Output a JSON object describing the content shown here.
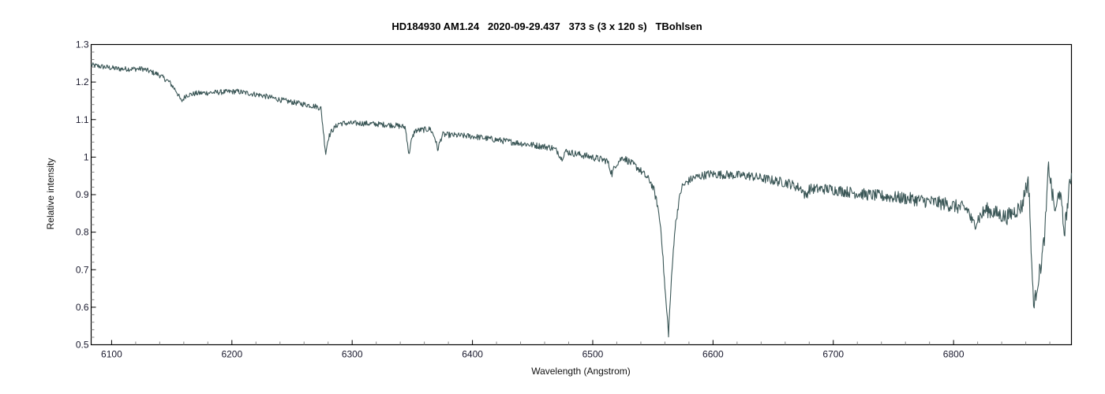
{
  "chart_data": {
    "type": "line",
    "title": "HD184930 AM1.24   2020-09-29.437   373 s (3 x 120 s)   TBohlsen",
    "xlabel": "Wavelength (Angstrom)",
    "ylabel": "Relative intensity",
    "xlim": [
      6083,
      6898
    ],
    "ylim": [
      0.5,
      1.3
    ],
    "x_ticks": [
      6100,
      6200,
      6300,
      6400,
      6500,
      6600,
      6700,
      6800
    ],
    "x_tick_labels": [
      "6100",
      "6200",
      "6300",
      "6400",
      "6500",
      "6600",
      "6700",
      "6800"
    ],
    "x_minor_step": 20,
    "y_ticks": [
      0.5,
      0.6,
      0.7,
      0.8,
      0.9,
      1.0,
      1.1,
      1.2,
      1.3
    ],
    "y_tick_labels": [
      "0.5",
      "0.6",
      "0.7",
      "0.8",
      "0.9",
      "1",
      "1.1",
      "1.2",
      "1.3"
    ],
    "y_minor_step": 0.02,
    "grid": false,
    "line_color": "#3a5656",
    "series": [
      {
        "name": "spectrum",
        "x": [
          6083,
          6106,
          6126,
          6139,
          6148,
          6154,
          6158,
          6162,
          6171,
          6204,
          6224,
          6244,
          6270,
          6274,
          6276,
          6278,
          6280,
          6283,
          6289,
          6309,
          6335,
          6344,
          6346,
          6347,
          6349,
          6352,
          6365,
          6369,
          6371,
          6373,
          6375,
          6401,
          6433,
          6466,
          6471,
          6474,
          6477,
          6499,
          6512,
          6516,
          6519,
          6525,
          6538,
          6548,
          6551,
          6554,
          6557,
          6560,
          6563,
          6565,
          6568,
          6571,
          6574,
          6579,
          6584,
          6597,
          6630,
          6663,
          6674,
          6677,
          6680,
          6696,
          6728,
          6761,
          6794,
          6812,
          6816,
          6827,
          6844,
          6857,
          6860,
          6862,
          6863,
          6865,
          6867,
          6869,
          6873,
          6876,
          6879,
          6882,
          6885,
          6888,
          6892,
          6898
        ],
        "y": [
          1.245,
          1.235,
          1.235,
          1.22,
          1.2,
          1.175,
          1.148,
          1.165,
          1.17,
          1.175,
          1.165,
          1.15,
          1.135,
          1.13,
          1.07,
          1.01,
          1.05,
          1.07,
          1.09,
          1.09,
          1.085,
          1.08,
          1.04,
          1.005,
          1.04,
          1.07,
          1.075,
          1.05,
          1.02,
          1.04,
          1.06,
          1.055,
          1.04,
          1.025,
          1.015,
          0.995,
          1.015,
          1.0,
          0.99,
          0.955,
          0.98,
          1.0,
          0.97,
          0.935,
          0.91,
          0.87,
          0.8,
          0.65,
          0.53,
          0.65,
          0.8,
          0.87,
          0.92,
          0.935,
          0.945,
          0.955,
          0.95,
          0.93,
          0.915,
          0.895,
          0.915,
          0.915,
          0.9,
          0.89,
          0.875,
          0.86,
          0.82,
          0.86,
          0.84,
          0.87,
          0.92,
          0.93,
          0.9,
          0.7,
          0.6,
          0.65,
          0.72,
          0.8,
          0.98,
          0.9,
          0.85,
          0.92,
          0.8,
          0.96
        ]
      }
    ]
  }
}
